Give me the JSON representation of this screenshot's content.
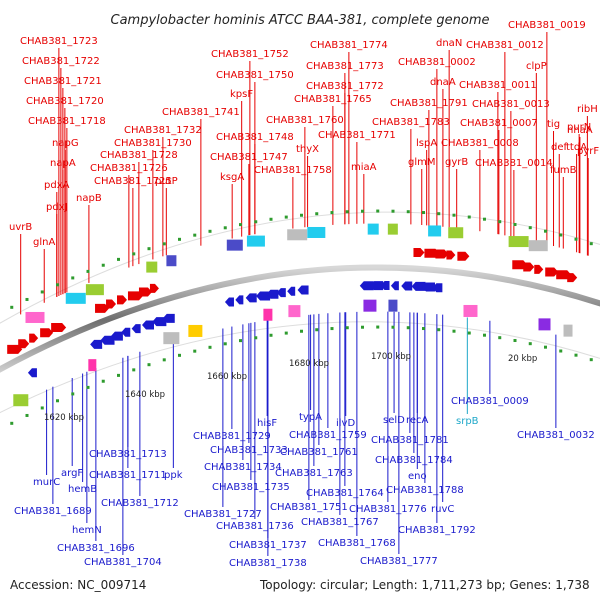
{
  "title": "Campylobacter hominis ATCC BAA-381, complete genome",
  "accession": "Accession: NC_009714",
  "summary": "Topology: circular; Length: 1,711,273 bp; Genes: 1,738",
  "ticks": [
    "1620 kbp",
    "1640 kbp",
    "1660 kbp",
    "1680 kbp",
    "1700 kbp",
    "20 kbp"
  ],
  "top_labels": [
    "CHAB381_1723",
    "CHAB381_1722",
    "CHAB381_1721",
    "CHAB381_1720",
    "CHAB381_1718",
    "napG",
    "napA",
    "pdxA",
    "pdxJ",
    "uvrB",
    "glnA",
    "napB",
    "CHAB381_1725",
    "putP",
    "CHAB381_1726",
    "CHAB381_1728",
    "CHAB381_1730",
    "CHAB381_1732",
    "CHAB381_1741",
    "ksgA",
    "CHAB381_1747",
    "CHAB381_1748",
    "kpsF",
    "CHAB381_1750",
    "CHAB381_1752",
    "CHAB381_1758",
    "thyX",
    "CHAB381_1760",
    "CHAB381_1765",
    "CHAB381_1771",
    "CHAB381_1772",
    "CHAB381_1773",
    "CHAB381_1774",
    "miaA",
    "CHAB381_1783",
    "lspA",
    "glmM",
    "CHAB381_1791",
    "dnaA",
    "gyrB",
    "CHAB381_0002",
    "dnaN",
    "CHAB381_0007",
    "CHAB381_0008",
    "CHAB381_0011",
    "CHAB381_0012",
    "CHAB381_0013",
    "CHAB381_0014",
    "CHAB381_0019",
    "clpP",
    "tig",
    "def",
    "purN",
    "fumB",
    "ttdA",
    "nhaA",
    "ribH",
    "pyrF"
  ],
  "bottom_labels": [
    "CHAB381_1689",
    "murC",
    "argF",
    "hemB",
    "CHAB381_1713",
    "CHAB381_1711",
    "CHAB381_1712",
    "hemN",
    "CHAB381_1696",
    "CHAB381_1704",
    "ppk",
    "CHAB381_1729",
    "CHAB381_1733",
    "CHAB381_1734",
    "CHAB381_1735",
    "CHAB381_1727",
    "CHAB381_1736",
    "CHAB381_1737",
    "CHAB381_1738",
    "hisF",
    "typA",
    "CHAB381_1759",
    "CHAB381_1761",
    "CHAB381_1763",
    "CHAB381_1764",
    "CHAB381_1751",
    "CHAB381_1767",
    "CHAB381_1768",
    "ilvD",
    "selD",
    "recA",
    "CHAB381_1781",
    "CHAB381_1784",
    "eno",
    "CHAB381_1788",
    "CHAB381_1776",
    "CHAB381_1777",
    "ruvC",
    "CHAB381_1792",
    "CHAB381_0009",
    "CHAB381_0032"
  ],
  "highlight_labels": [
    "srpB"
  ],
  "colors": {
    "forward": "#e60000",
    "reverse": "#1a1acc",
    "rna": "#1fa8c9",
    "backbone": "#8a8a8a"
  }
}
